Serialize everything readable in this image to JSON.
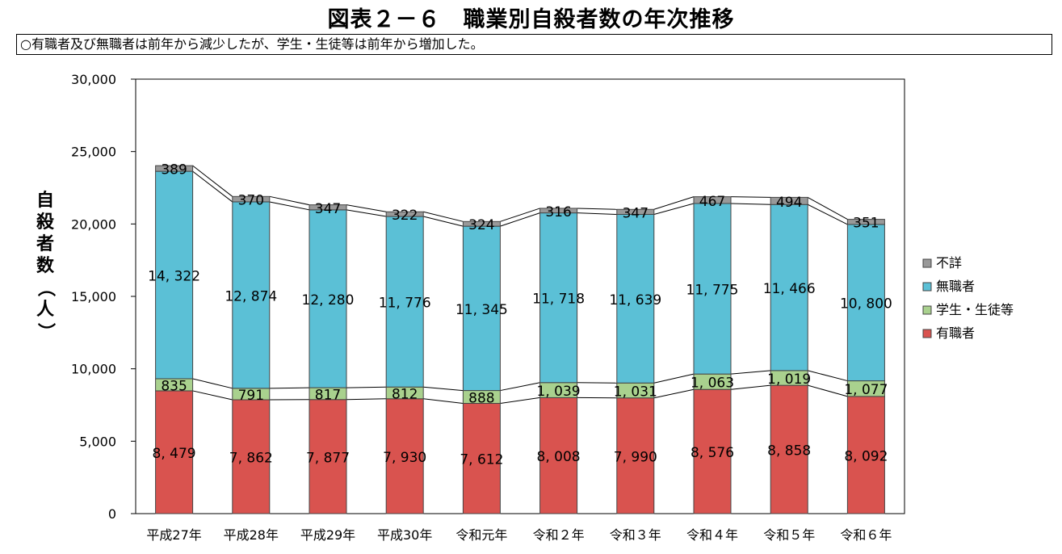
{
  "title": "図表２－６　職業別自殺者数の年次推移",
  "subtitle": "○有職者及び無職者は前年から減少したが、学生・生徒等は前年から増加した。",
  "chart_data": {
    "type": "bar",
    "stacked": true,
    "ylabel": "自殺者数（人）",
    "xlabel": "",
    "ylim": [
      0,
      30000
    ],
    "yticks": [
      "0",
      "5,000",
      "10,000",
      "15,000",
      "20,000",
      "25,000",
      "30,000"
    ],
    "categories": [
      "平成27年",
      "平成28年",
      "平成29年",
      "平成30年",
      "令和元年",
      "令和２年",
      "令和３年",
      "令和４年",
      "令和５年",
      "令和６年"
    ],
    "series": [
      {
        "name": "有職者",
        "color": "#d9534f",
        "values": [
          8479,
          7862,
          7877,
          7930,
          7612,
          8008,
          7990,
          8576,
          8858,
          8092
        ],
        "labels": [
          "8, 479",
          "7, 862",
          "7, 877",
          "7, 930",
          "7, 612",
          "8, 008",
          "7, 990",
          "8, 576",
          "8, 858",
          "8, 092"
        ]
      },
      {
        "name": "学生・生徒等",
        "color": "#a9d18e",
        "values": [
          835,
          791,
          817,
          812,
          888,
          1039,
          1031,
          1063,
          1019,
          1077
        ],
        "labels": [
          "835",
          "791",
          "817",
          "812",
          "888",
          "1, 039",
          "1, 031",
          "1, 063",
          "1, 019",
          "1, 077"
        ]
      },
      {
        "name": "無職者",
        "color": "#5bc0d6",
        "values": [
          14322,
          12874,
          12280,
          11776,
          11345,
          11718,
          11639,
          11775,
          11466,
          10800
        ],
        "labels": [
          "14, 322",
          "12, 874",
          "12, 280",
          "11, 776",
          "11, 345",
          "11, 718",
          "11, 639",
          "11, 775",
          "11, 466",
          "10, 800"
        ]
      },
      {
        "name": "不詳",
        "color": "#999999",
        "values": [
          389,
          370,
          347,
          322,
          324,
          316,
          347,
          467,
          494,
          351
        ],
        "labels": [
          "389",
          "370",
          "347",
          "322",
          "324",
          "316",
          "347",
          "467",
          "494",
          "351"
        ]
      }
    ],
    "legend": "right",
    "legend_order": [
      "不詳",
      "無職者",
      "学生・生徒等",
      "有職者"
    ],
    "grid": false
  }
}
